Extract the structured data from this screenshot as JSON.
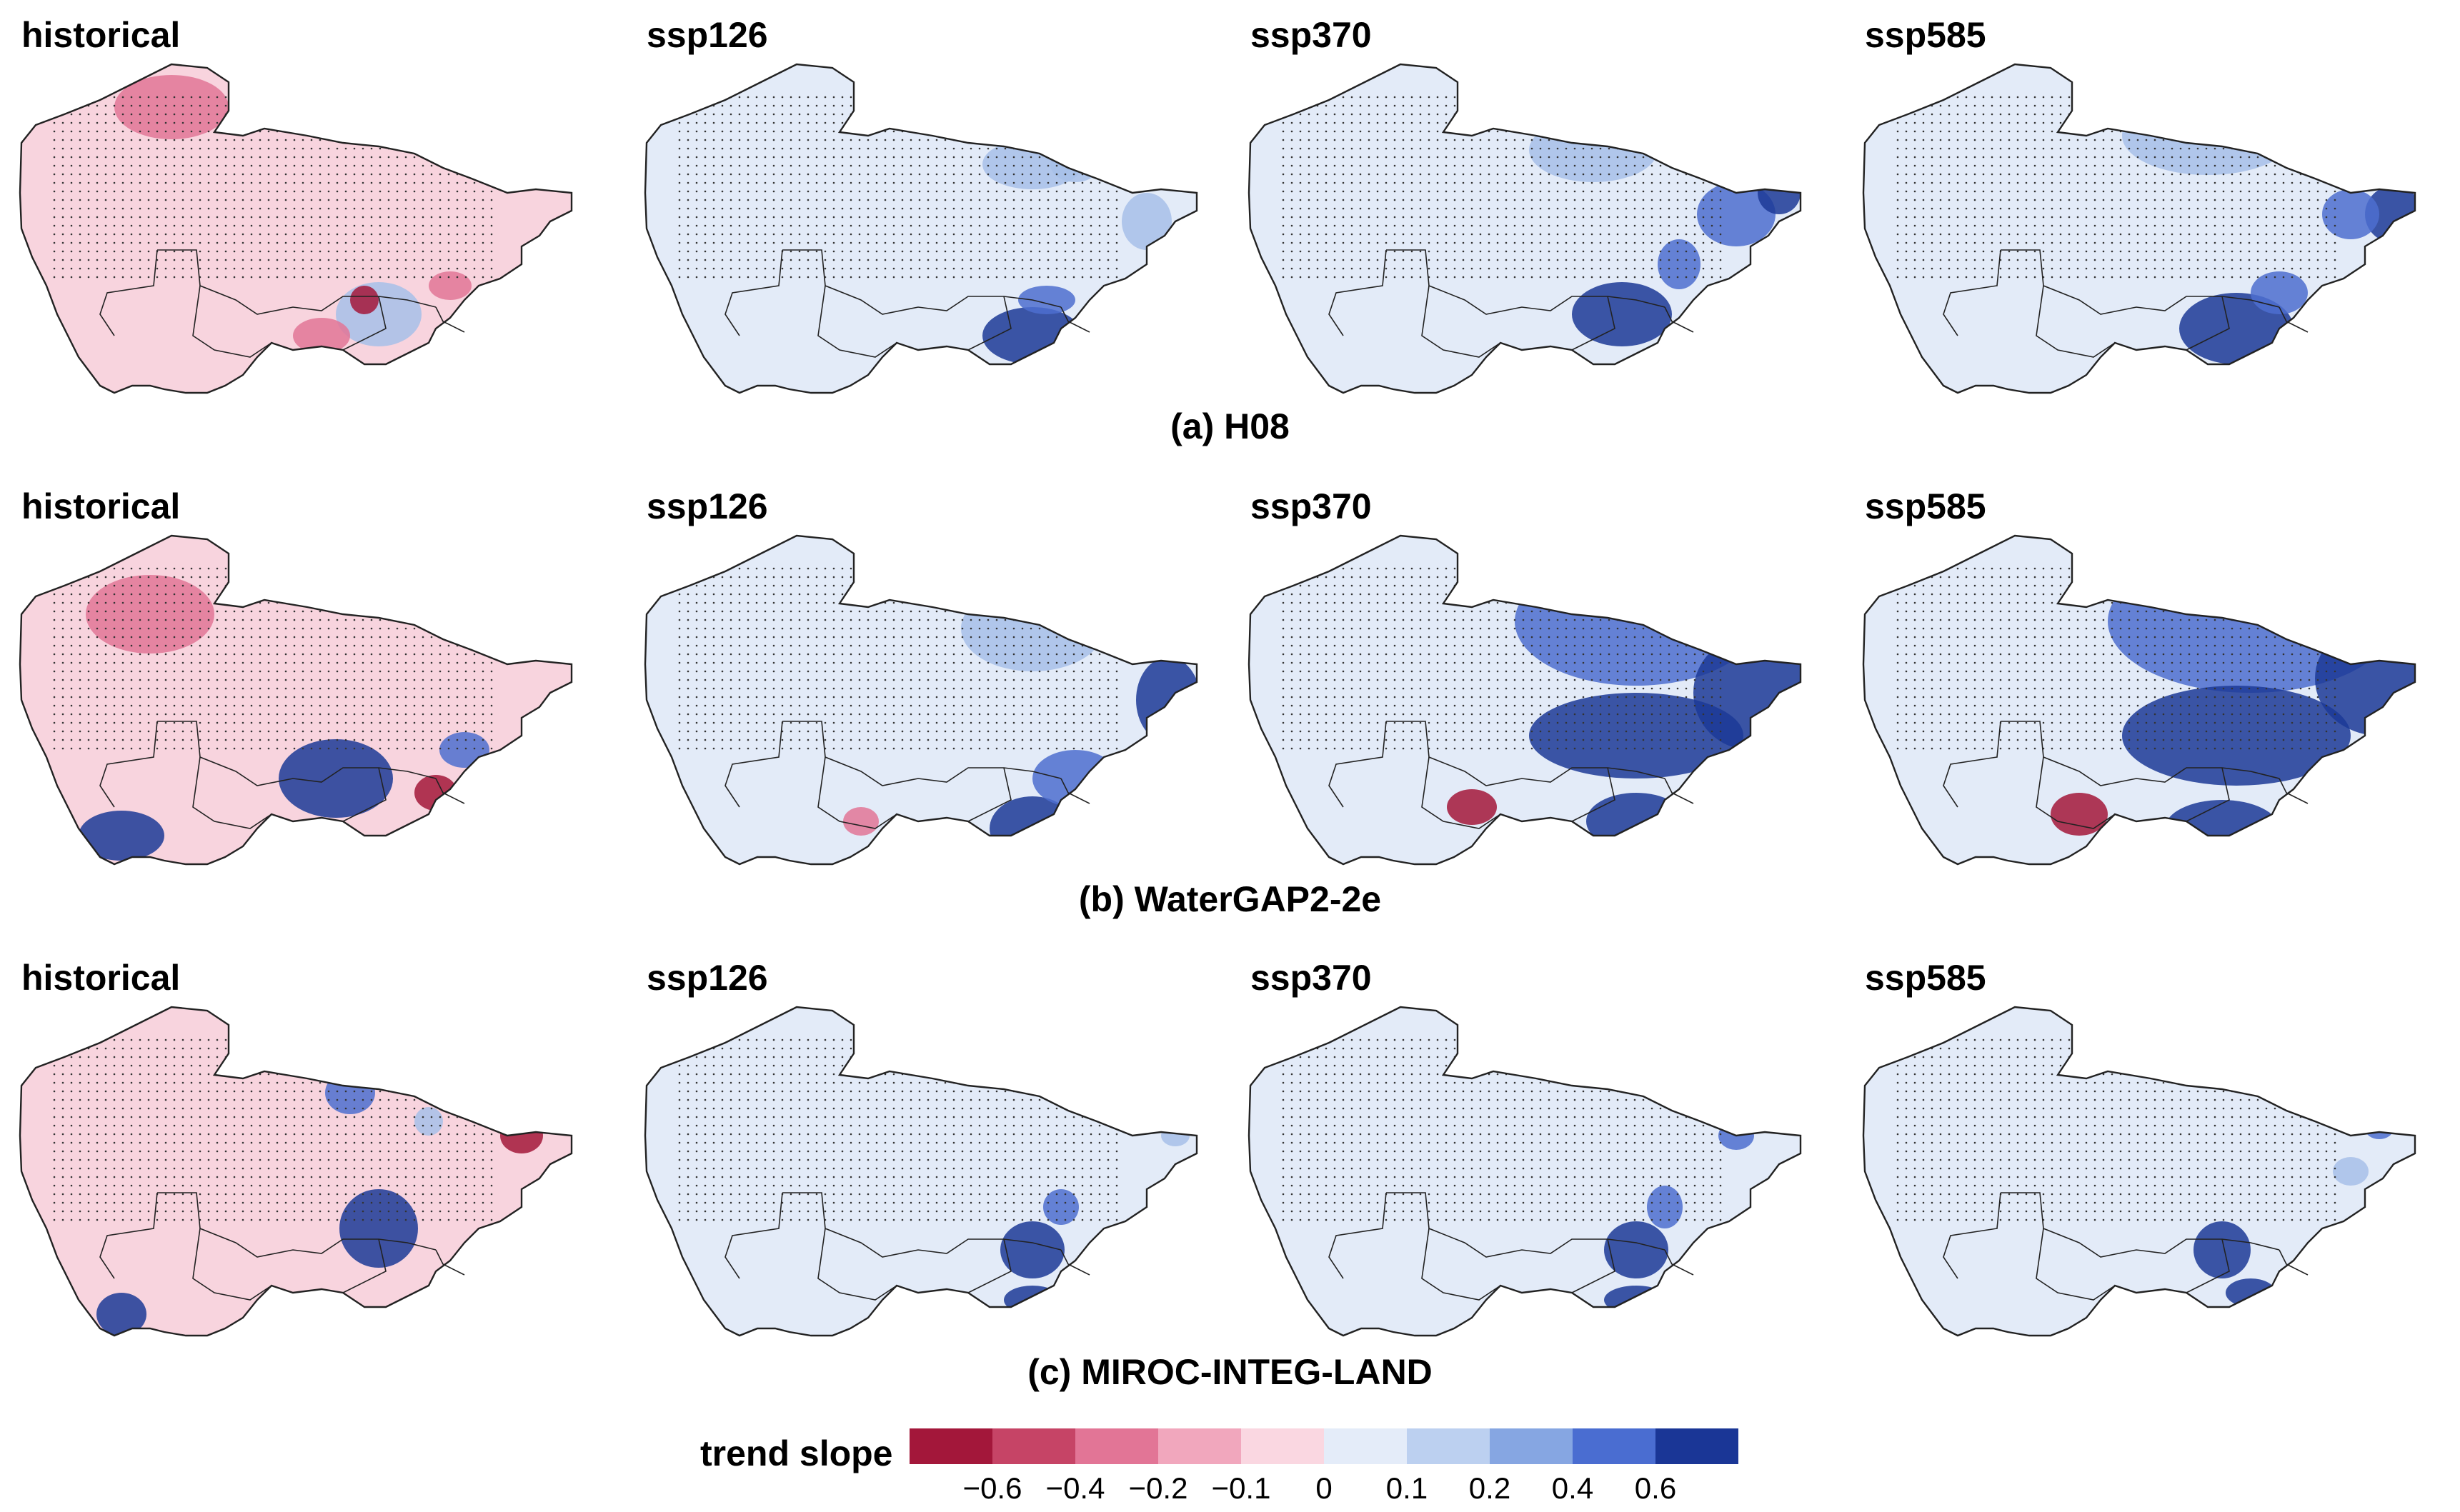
{
  "panel_titles": [
    "historical",
    "ssp126",
    "ssp370",
    "ssp585"
  ],
  "rows": [
    {
      "caption": "(a) H08",
      "panels": [
        {
          "scenario": "historical",
          "base": "pink",
          "blue_patches": "south-east mountains",
          "red_patches": "north border"
        },
        {
          "scenario": "ssp126",
          "base": "light-blue",
          "blue_patches": "south-east and north-central"
        },
        {
          "scenario": "ssp370",
          "base": "light-blue",
          "blue_patches": "east, south-east, north-central"
        },
        {
          "scenario": "ssp585",
          "base": "light-blue",
          "blue_patches": "north-east and south-east"
        }
      ]
    },
    {
      "caption": "(b) WaterGAP2-2e",
      "panels": [
        {
          "scenario": "historical",
          "base": "pink",
          "blue_patches": "south and south-east"
        },
        {
          "scenario": "ssp126",
          "base": "light-blue",
          "blue_patches": "central-east and south-east"
        },
        {
          "scenario": "ssp370",
          "base": "light-blue",
          "blue_patches": "north-east and east, strong"
        },
        {
          "scenario": "ssp585",
          "base": "light-blue",
          "blue_patches": "north and east, strongest"
        }
      ]
    },
    {
      "caption": "(c) MIROC-INTEG-LAND",
      "panels": [
        {
          "scenario": "historical",
          "base": "pink",
          "blue_patches": "scattered north, south-east"
        },
        {
          "scenario": "ssp126",
          "base": "light-blue",
          "blue_patches": "south-east only"
        },
        {
          "scenario": "ssp370",
          "base": "light-blue",
          "blue_patches": "south-east only"
        },
        {
          "scenario": "ssp585",
          "base": "light-blue",
          "blue_patches": "south-east only"
        }
      ]
    }
  ],
  "colorbar": {
    "label": "trend slope",
    "colors": [
      "#a3173a",
      "#c64466",
      "#e27596",
      "#f1a7bd",
      "#fad7e1",
      "#e4ecf9",
      "#bcd0f0",
      "#86a6e2",
      "#4a6dd1",
      "#1a3696"
    ],
    "ticks": [
      "−0.6",
      "−0.4",
      "−0.2",
      "−0.1",
      "0",
      "0.1",
      "0.2",
      "0.4",
      "0.6"
    ]
  },
  "colors": {
    "pink_base": "#f8d4de",
    "blue_base": "#e3ebf8",
    "mid_blue": "#a7bfe9",
    "strong_blue": "#4d6fcf",
    "dark_blue": "#1c3a97",
    "mid_red": "#e27596",
    "dark_red": "#a3173a",
    "outline": "#222222",
    "stipple": "#333333"
  }
}
